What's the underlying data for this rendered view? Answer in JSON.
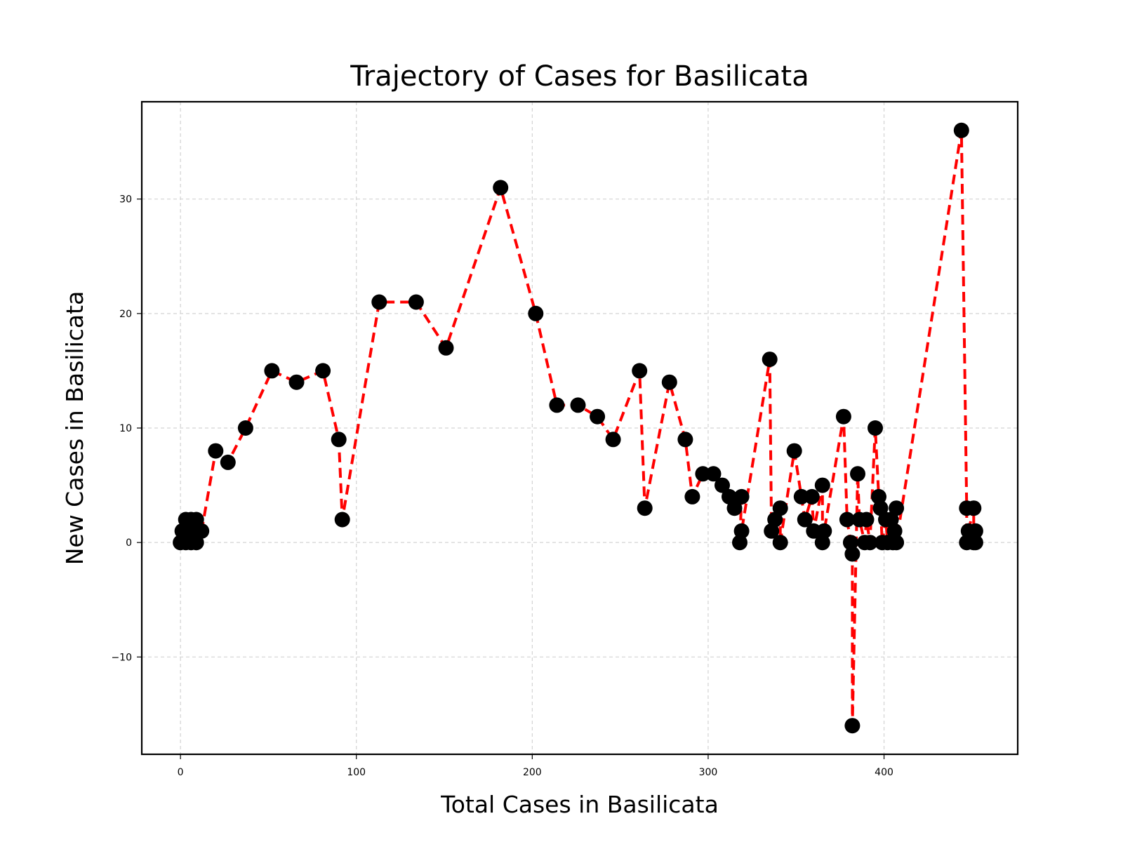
{
  "chart_data": {
    "type": "line",
    "title": "Trajectory of Cases for Basilicata",
    "xlabel": "Total Cases in Basilicata",
    "ylabel": "New Cases in Basilicata",
    "xlim": [
      -22,
      476
    ],
    "ylim": [
      -18.5,
      38.5
    ],
    "xticks": [
      0,
      100,
      200,
      300,
      400
    ],
    "yticks": [
      -10,
      0,
      10,
      20,
      30
    ],
    "grid": true,
    "series": [
      {
        "line_color": "#ff0000",
        "line_style": "dashed",
        "marker_color": "#000000",
        "points": [
          {
            "x": 0,
            "y": 0
          },
          {
            "x": 1,
            "y": 1
          },
          {
            "x": 3,
            "y": 2
          },
          {
            "x": 3,
            "y": 0
          },
          {
            "x": 4,
            "y": 1
          },
          {
            "x": 6,
            "y": 2
          },
          {
            "x": 6,
            "y": 0
          },
          {
            "x": 7,
            "y": 1
          },
          {
            "x": 9,
            "y": 2
          },
          {
            "x": 9,
            "y": 0
          },
          {
            "x": 10,
            "y": 1
          },
          {
            "x": 12,
            "y": 1
          },
          {
            "x": 20,
            "y": 8
          },
          {
            "x": 27,
            "y": 7
          },
          {
            "x": 37,
            "y": 10
          },
          {
            "x": 52,
            "y": 15
          },
          {
            "x": 66,
            "y": 14
          },
          {
            "x": 81,
            "y": 15
          },
          {
            "x": 90,
            "y": 9
          },
          {
            "x": 92,
            "y": 2
          },
          {
            "x": 113,
            "y": 21
          },
          {
            "x": 134,
            "y": 21
          },
          {
            "x": 151,
            "y": 17
          },
          {
            "x": 182,
            "y": 31
          },
          {
            "x": 202,
            "y": 20
          },
          {
            "x": 214,
            "y": 12
          },
          {
            "x": 226,
            "y": 12
          },
          {
            "x": 237,
            "y": 11
          },
          {
            "x": 246,
            "y": 9
          },
          {
            "x": 261,
            "y": 15
          },
          {
            "x": 264,
            "y": 3
          },
          {
            "x": 278,
            "y": 14
          },
          {
            "x": 287,
            "y": 9
          },
          {
            "x": 291,
            "y": 4
          },
          {
            "x": 297,
            "y": 6
          },
          {
            "x": 303,
            "y": 6
          },
          {
            "x": 308,
            "y": 5
          },
          {
            "x": 312,
            "y": 4
          },
          {
            "x": 315,
            "y": 3
          },
          {
            "x": 319,
            "y": 4
          },
          {
            "x": 318,
            "y": 0
          },
          {
            "x": 319,
            "y": 1
          },
          {
            "x": 335,
            "y": 16
          },
          {
            "x": 336,
            "y": 1
          },
          {
            "x": 338,
            "y": 2
          },
          {
            "x": 341,
            "y": 3
          },
          {
            "x": 341,
            "y": 0
          },
          {
            "x": 349,
            "y": 8
          },
          {
            "x": 353,
            "y": 4
          },
          {
            "x": 355,
            "y": 2
          },
          {
            "x": 359,
            "y": 4
          },
          {
            "x": 360,
            "y": 1
          },
          {
            "x": 365,
            "y": 5
          },
          {
            "x": 365,
            "y": 0
          },
          {
            "x": 366,
            "y": 1
          },
          {
            "x": 377,
            "y": 11
          },
          {
            "x": 379,
            "y": 2
          },
          {
            "x": 381,
            "y": 0
          },
          {
            "x": 382,
            "y": -1
          },
          {
            "x": 382,
            "y": -16
          },
          {
            "x": 385,
            "y": 6
          },
          {
            "x": 386,
            "y": 2
          },
          {
            "x": 389,
            "y": 0
          },
          {
            "x": 390,
            "y": 2
          },
          {
            "x": 392,
            "y": 0
          },
          {
            "x": 395,
            "y": 10
          },
          {
            "x": 397,
            "y": 4
          },
          {
            "x": 398,
            "y": 3
          },
          {
            "x": 399,
            "y": 0
          },
          {
            "x": 401,
            "y": 2
          },
          {
            "x": 402,
            "y": 0
          },
          {
            "x": 404,
            "y": 2
          },
          {
            "x": 405,
            "y": 0
          },
          {
            "x": 406,
            "y": 1
          },
          {
            "x": 407,
            "y": 3
          },
          {
            "x": 407,
            "y": 0
          },
          {
            "x": 444,
            "y": 36
          },
          {
            "x": 447,
            "y": 3
          },
          {
            "x": 447,
            "y": 0
          },
          {
            "x": 448,
            "y": 1
          },
          {
            "x": 451,
            "y": 3
          },
          {
            "x": 451,
            "y": 0
          },
          {
            "x": 452,
            "y": 1
          },
          {
            "x": 452,
            "y": 0
          }
        ]
      }
    ]
  }
}
